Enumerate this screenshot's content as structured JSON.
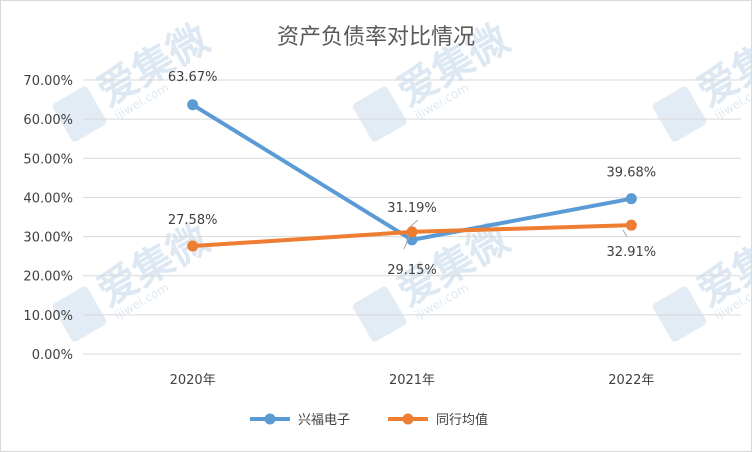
{
  "chart_data": {
    "type": "line",
    "title": "资产负债率对比情况",
    "categories": [
      "2020年",
      "2021年",
      "2022年"
    ],
    "y_ticks": [
      "0.00%",
      "10.00%",
      "20.00%",
      "30.00%",
      "40.00%",
      "50.00%",
      "60.00%",
      "70.00%"
    ],
    "ylim": [
      0,
      70
    ],
    "grid": true,
    "legend_position": "bottom",
    "series": [
      {
        "name": "兴福电子",
        "values": [
          63.67,
          29.15,
          39.68
        ],
        "labels": [
          "63.67%",
          "29.15%",
          "39.68%"
        ],
        "color": "#5b9bd5"
      },
      {
        "name": "同行均值",
        "values": [
          27.58,
          31.19,
          32.91
        ],
        "labels": [
          "27.58%",
          "31.19%",
          "32.91%"
        ],
        "color": "#ed7d31"
      }
    ]
  },
  "watermark": {
    "text": "爱集微",
    "url": "ijiwei.com"
  }
}
